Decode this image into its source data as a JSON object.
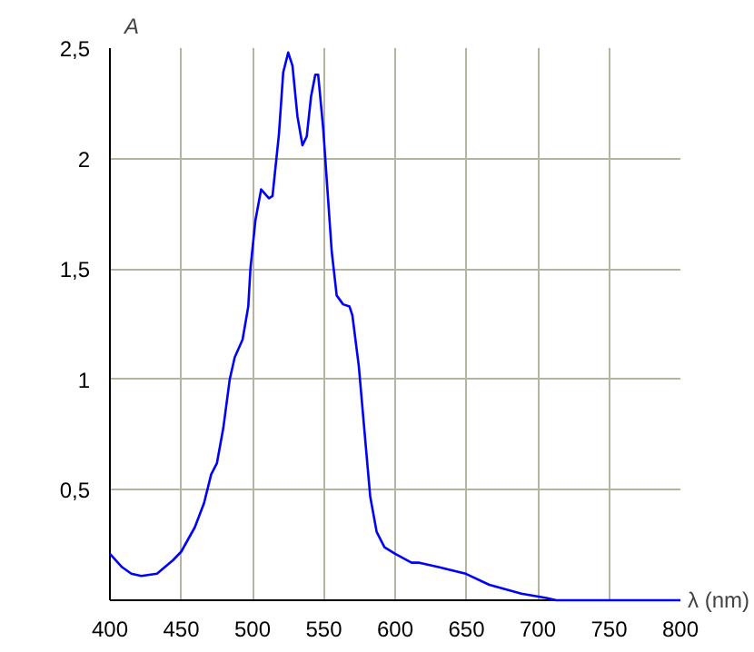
{
  "chart_data": {
    "type": "line",
    "xlabel": "λ (nm)",
    "ylabel": "A",
    "x": [
      400,
      408.5,
      415,
      422,
      433,
      444,
      450,
      459.5,
      466,
      471,
      475,
      479.5,
      484,
      487.5,
      493,
      497,
      498.5,
      502,
      506,
      511.5,
      514,
      518.5,
      521.5,
      525,
      528,
      531.5,
      535,
      538,
      541,
      544,
      546,
      549.5,
      552.5,
      555.5,
      559,
      563.5,
      568,
      570,
      574.5,
      579.5,
      582.5,
      587,
      592.5,
      600,
      611.5,
      617,
      630.5,
      649.5,
      666,
      688.5,
      706,
      713,
      800
    ],
    "series": [
      {
        "color": "#0000ff",
        "values": [
          0.21,
          0.15,
          0.12,
          0.11,
          0.12,
          0.18,
          0.22,
          0.33,
          0.44,
          0.57,
          0.62,
          0.78,
          1.0,
          1.1,
          1.18,
          1.33,
          1.5,
          1.72,
          1.86,
          1.82,
          1.83,
          2.11,
          2.39,
          2.48,
          2.42,
          2.19,
          2.06,
          2.1,
          2.28,
          2.38,
          2.38,
          2.14,
          1.86,
          1.58,
          1.38,
          1.34,
          1.33,
          1.29,
          1.06,
          0.69,
          0.47,
          0.31,
          0.24,
          0.21,
          0.17,
          0.17,
          0.15,
          0.12,
          0.07,
          0.03,
          0.01,
          0,
          0
        ]
      }
    ],
    "xlim": [
      400,
      800
    ],
    "ylim": [
      0,
      2.5
    ],
    "xticks": [
      400,
      450,
      500,
      550,
      600,
      650,
      700,
      750,
      800
    ],
    "yticks": [
      {
        "value": 0.5,
        "label": "0,5"
      },
      1,
      {
        "value": 1.5,
        "label": "1,5"
      },
      2,
      {
        "value": 2.5,
        "label": "2,5"
      }
    ],
    "grid": true,
    "marker": "none",
    "line_style": "solid"
  }
}
